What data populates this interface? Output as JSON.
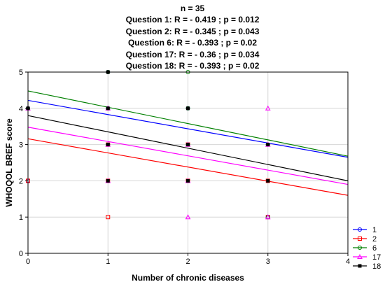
{
  "title_lines": [
    "n = 35",
    "Question 1: R = - 0.419 ; p = 0.012",
    "Question 2: R = - 0.345 ; p = 0.043",
    "Question 6: R = - 0.393 ; p = 0.02",
    "Question 17: R = - 0.36 ; p = 0.034",
    "Question 18: R = - 0.393 ; p = 0.02"
  ],
  "chart_data": {
    "type": "scatter",
    "xlabel": "Number of chronic diseases",
    "ylabel": "WHOQOL BREF score",
    "xlim": [
      0,
      4
    ],
    "ylim": [
      0,
      5
    ],
    "xticks": [
      "0",
      "1",
      "2",
      "3",
      "4"
    ],
    "yticks": [
      "0",
      "1",
      "2",
      "3",
      "4",
      "5"
    ],
    "grid": true,
    "legend_position": "bottom-right",
    "series": [
      {
        "name": "1",
        "color": "#0000ff",
        "marker": "circle",
        "fit": [
          4.22,
          2.65
        ],
        "points": [
          [
            0,
            4
          ],
          [
            0,
            2
          ],
          [
            1,
            5
          ],
          [
            1,
            4
          ],
          [
            1,
            3
          ],
          [
            2,
            4
          ],
          [
            2,
            3
          ],
          [
            3,
            3
          ],
          [
            3,
            1
          ]
        ]
      },
      {
        "name": "2",
        "color": "#ff0000",
        "marker": "square",
        "fit": [
          3.16,
          1.6
        ],
        "points": [
          [
            0,
            2
          ],
          [
            1,
            3
          ],
          [
            1,
            2
          ],
          [
            1,
            1
          ],
          [
            2,
            3
          ],
          [
            2,
            2
          ],
          [
            3,
            2
          ],
          [
            3,
            1
          ]
        ]
      },
      {
        "name": "6",
        "color": "#008000",
        "marker": "circle",
        "fit": [
          4.48,
          2.68
        ],
        "points": [
          [
            0,
            4
          ],
          [
            1,
            5
          ],
          [
            1,
            4
          ],
          [
            1,
            3
          ],
          [
            2,
            5
          ],
          [
            2,
            4
          ],
          [
            2,
            3
          ],
          [
            3,
            3
          ],
          [
            3,
            1
          ]
        ]
      },
      {
        "name": "17",
        "color": "#ff00ff",
        "marker": "triangle",
        "fit": [
          3.48,
          1.9
        ],
        "points": [
          [
            0,
            4
          ],
          [
            1,
            4
          ],
          [
            1,
            3
          ],
          [
            1,
            2
          ],
          [
            2,
            3
          ],
          [
            2,
            2
          ],
          [
            2,
            1
          ],
          [
            3,
            4
          ],
          [
            3,
            3
          ],
          [
            3,
            1
          ]
        ]
      },
      {
        "name": "18",
        "color": "#000000",
        "marker": "circle-filled",
        "fit": [
          3.8,
          2.0
        ],
        "points": [
          [
            0,
            4
          ],
          [
            1,
            5
          ],
          [
            1,
            4
          ],
          [
            1,
            3
          ],
          [
            1,
            2
          ],
          [
            2,
            4
          ],
          [
            2,
            3
          ],
          [
            2,
            2
          ],
          [
            3,
            3
          ],
          [
            3,
            2
          ]
        ]
      }
    ]
  }
}
